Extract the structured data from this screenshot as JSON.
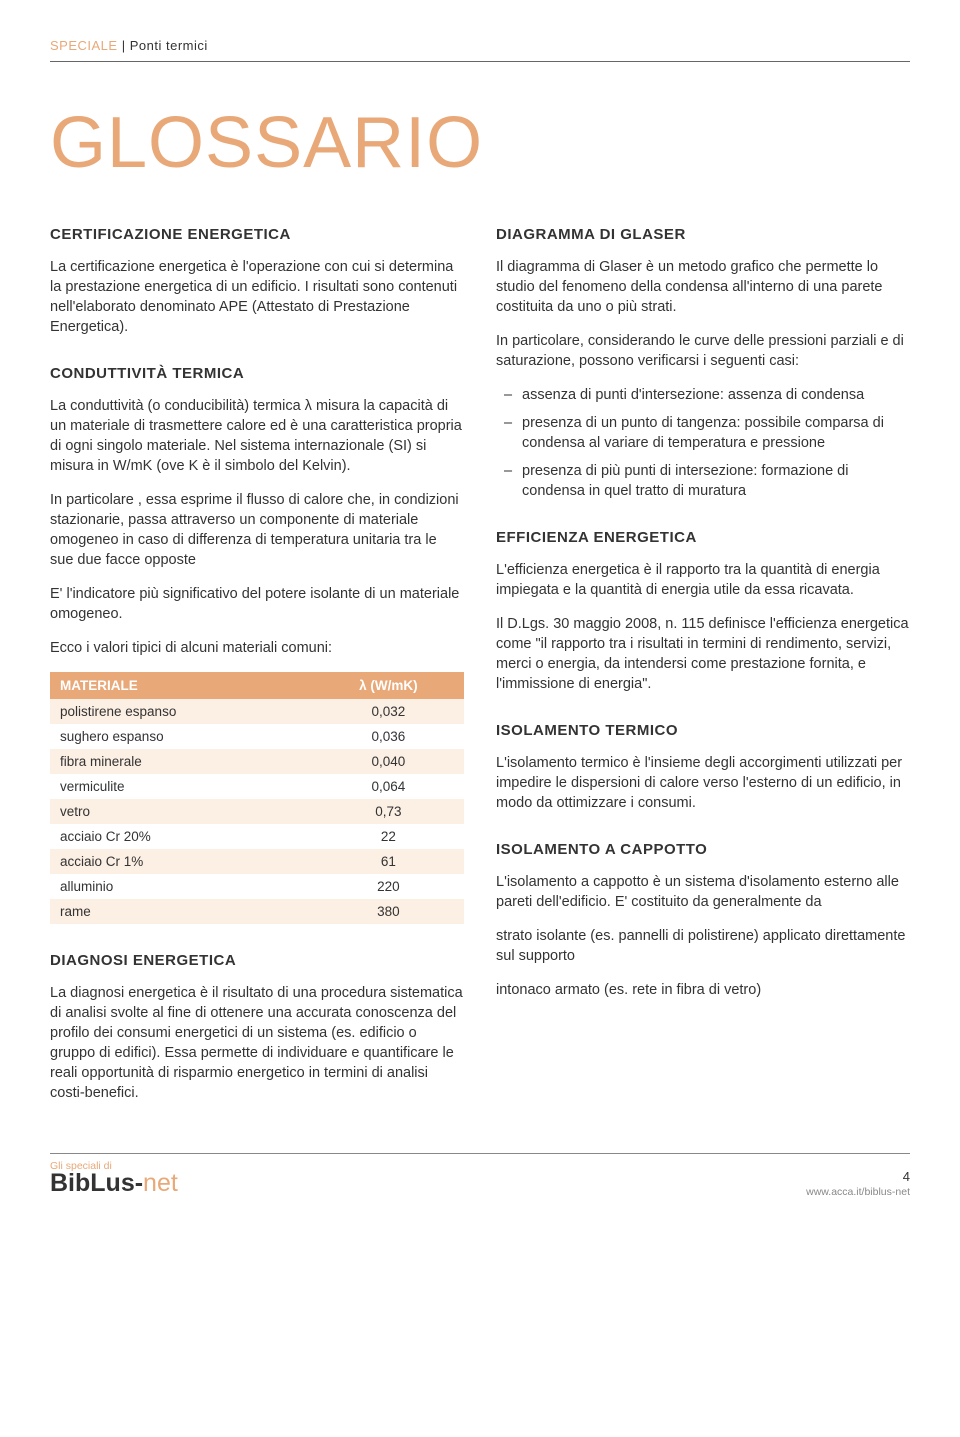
{
  "header": {
    "tag_orange": "SPECIALE",
    "tag_separator": "|",
    "tag_rest": "Ponti termici"
  },
  "main_title": "GLOSSARIO",
  "colors": {
    "accent": "#e8a878",
    "text": "#333333",
    "table_header_bg": "#e8a878",
    "table_row_odd": "#fcefe4",
    "table_row_even": "#ffffff"
  },
  "left": {
    "certificazione": {
      "title": "CERTIFICAZIONE ENERGETICA",
      "p1": "La certificazione energetica è l'operazione con cui si determina la prestazione energetica di un edificio. I risultati sono contenuti nell'elaborato denominato APE (Attestato di Prestazione Energetica)."
    },
    "conduttivita": {
      "title": "CONDUTTIVITÀ TERMICA",
      "p1": "La conduttività (o conducibilità) termica λ misura la capacità di un materiale di trasmettere calore ed è una caratteristica propria di ogni singolo materiale. Nel sistema internazionale (SI) si misura in W/mK (ove K è il simbolo del Kelvin).",
      "p2": "In particolare , essa esprime il flusso di calore che, in condizioni stazionarie, passa attraverso un componente di materiale omogeneo in caso di differenza di temperatura unitaria tra le sue due facce opposte",
      "p3": "E' l'indicatore più significativo del potere isolante di un materiale omogeneo.",
      "p4": "Ecco i valori tipici di alcuni materiali comuni:"
    },
    "table": {
      "col_material": "MATERIALE",
      "col_lambda": "λ (W/mK)",
      "rows": [
        {
          "m": "polistirene espanso",
          "v": "0,032"
        },
        {
          "m": "sughero espanso",
          "v": "0,036"
        },
        {
          "m": "fibra minerale",
          "v": "0,040"
        },
        {
          "m": "vermiculite",
          "v": "0,064"
        },
        {
          "m": "vetro",
          "v": "0,73"
        },
        {
          "m": "acciaio Cr 20%",
          "v": "22"
        },
        {
          "m": "acciaio Cr 1%",
          "v": "61"
        },
        {
          "m": "alluminio",
          "v": "220"
        },
        {
          "m": "rame",
          "v": "380"
        }
      ]
    },
    "diagnosi": {
      "title": "DIAGNOSI ENERGETICA",
      "p1": "La diagnosi energetica è il risultato di una procedura sistematica di analisi svolte al fine di ottenere una accurata conoscenza del profilo dei consumi energetici di un sistema (es. edificio o gruppo di edifici). Essa permette di individuare e quantificare le reali opportunità di risparmio energetico in termini di analisi costi-benefici."
    }
  },
  "right": {
    "glaser": {
      "title": "DIAGRAMMA DI GLASER",
      "p1": "Il diagramma di Glaser è un metodo grafico che permette lo studio del fenomeno della condensa all'interno di una parete costituita da uno o più strati.",
      "p2": "In particolare, considerando le curve delle pressioni parziali e di saturazione, possono verificarsi i seguenti casi:",
      "li1": "assenza di punti d'intersezione: assenza di condensa",
      "li2": "presenza di un punto di tangenza: possibile comparsa di condensa al variare di temperatura e pressione",
      "li3": "presenza di più punti di intersezione: formazione di condensa in quel tratto di muratura"
    },
    "efficienza": {
      "title": "EFFICIENZA ENERGETICA",
      "p1": "L'efficienza energetica è il rapporto tra la quantità di energia impiegata e la quantità di energia utile da essa ricavata.",
      "p2": "Il D.Lgs. 30 maggio 2008, n. 115 definisce l'efficienza energetica come \"il rapporto tra i risultati in termini di rendimento, servizi, merci o energia, da intendersi come prestazione fornita, e l'immissione di energia\"."
    },
    "isolamento_termico": {
      "title": "ISOLAMENTO TERMICO",
      "p1": "L'isolamento termico è l'insieme degli accorgimenti utilizzati per impedire le dispersioni di calore verso l'esterno di un edificio, in modo da ottimizzare i consumi."
    },
    "isolamento_cappotto": {
      "title": "ISOLAMENTO A CAPPOTTO",
      "p1": "L'isolamento a cappotto è un sistema d'isolamento esterno alle pareti dell'edificio. E' costituito da generalmente da",
      "p2": "strato isolante (es. pannelli di polistirene) applicato direttamente sul supporto",
      "p3": "intonaco armato (es. rete in fibra di vetro)"
    }
  },
  "footer": {
    "left_top": "Gli speciali di",
    "logo_main": "BibLus",
    "logo_dash": "-",
    "logo_net": "net",
    "page_num": "4",
    "url": "www.acca.it/biblus-net"
  }
}
